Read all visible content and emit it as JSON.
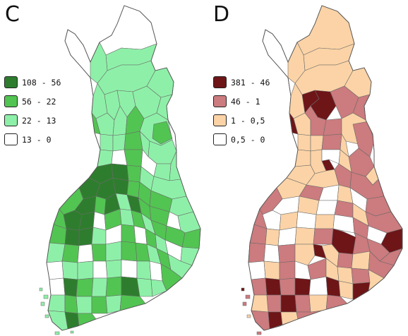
{
  "panels": [
    {
      "id": "C",
      "letter": "C",
      "legend": [
        {
          "label": "108 - 56",
          "color": "#2e7d2e"
        },
        {
          "label": "56 - 22",
          "color": "#52c452"
        },
        {
          "label": "22 - 13",
          "color": "#8ef0a8"
        },
        {
          "label": "13 - 0",
          "color": "#ffffff"
        }
      ]
    },
    {
      "id": "D",
      "letter": "D",
      "legend": [
        {
          "label": "381 - 46",
          "color": "#6e1518"
        },
        {
          "label": "46 - 1",
          "color": "#cc7b7e"
        },
        {
          "label": "1 - 0,5",
          "color": "#fbd3a6"
        },
        {
          "label": "0,5 - 0",
          "color": "#ffffff"
        }
      ]
    }
  ]
}
